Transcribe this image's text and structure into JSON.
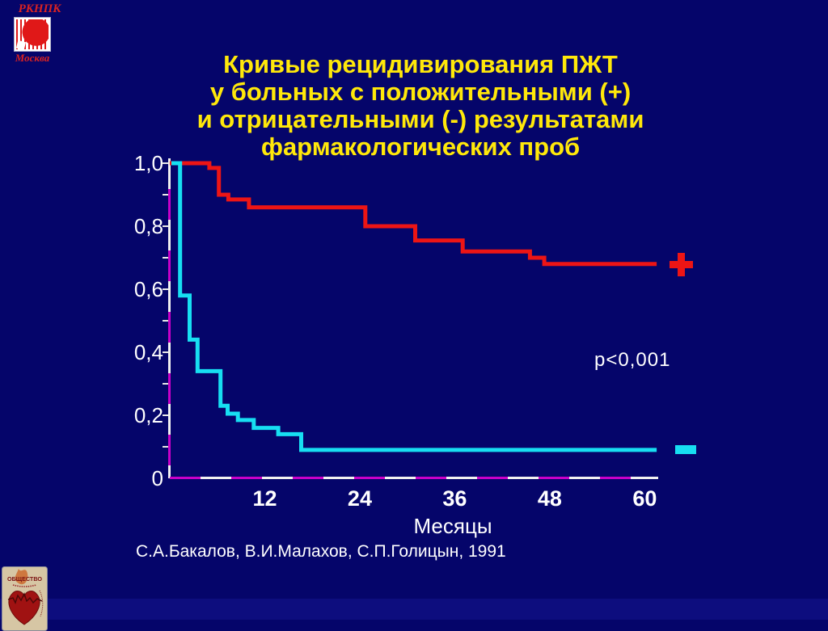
{
  "slide": {
    "title_lines": [
      "Кривые рецидивирования ПЖТ",
      "у больных с положительными (+)",
      "и отрицательными (-) результатами",
      "фармакологических проб"
    ],
    "p_value": "p<0,001",
    "citation": "С.А.Бакалов, В.И.Малахов, С.П.Голицын, 1991",
    "positive_marker_symbol": "+",
    "negative_marker_symbol": "−",
    "accent_colors": {
      "title_yellow": "#ffe80a",
      "background_navy": "#05056a",
      "axis_magenta": "#c800c8",
      "axis_white": "#f0f0f0"
    }
  },
  "logo_top": {
    "org": "РКНПК",
    "city": "Москва",
    "emblem": "red-striped-heart-icon"
  },
  "logo_bottom": {
    "text": "ОБЩЕСТВО",
    "emblem": "red-heart-ecg-icon"
  },
  "chart_data": {
    "type": "line",
    "subtype": "kaplan-meier-step",
    "title": "Кривые рецидивирования ПЖТ у больных с положительными (+) и отрицательными (-) результатами фармакологических проб",
    "xlabel": "Месяцы",
    "ylabel": "",
    "xlim": [
      0,
      62
    ],
    "ylim": [
      0,
      1.0
    ],
    "grid": false,
    "annotation": "p<0,001",
    "x_ticks": [
      12,
      24,
      36,
      48,
      60
    ],
    "x_tick_labels": [
      "12",
      "24",
      "36",
      "48",
      "60"
    ],
    "y_tick_values": [
      1.0,
      0.8,
      0.6,
      0.4,
      0.2,
      0
    ],
    "y_tick_labels": [
      "1,0",
      "0,8",
      "0,6",
      "0,4",
      "0,2",
      "0"
    ],
    "y_minor_ticks": [
      0.1,
      0.2,
      0.3,
      0.4,
      0.5,
      0.6,
      0.7,
      0.8,
      0.9,
      1.0
    ],
    "series": [
      {
        "id": "positive",
        "name": "положительные (+) результаты",
        "color": "#ed1515",
        "marker": "+",
        "points": [
          [
            0,
            1.0
          ],
          [
            5,
            1.0
          ],
          [
            5,
            0.985
          ],
          [
            6.2,
            0.985
          ],
          [
            6.2,
            0.9
          ],
          [
            7.4,
            0.9
          ],
          [
            7.4,
            0.885
          ],
          [
            10,
            0.885
          ],
          [
            10,
            0.86
          ],
          [
            24.7,
            0.86
          ],
          [
            24.7,
            0.8
          ],
          [
            31,
            0.8
          ],
          [
            31,
            0.755
          ],
          [
            37,
            0.755
          ],
          [
            37,
            0.72
          ],
          [
            45.5,
            0.72
          ],
          [
            45.5,
            0.7
          ],
          [
            47.3,
            0.7
          ],
          [
            47.3,
            0.68
          ],
          [
            61.5,
            0.68
          ]
        ]
      },
      {
        "id": "negative",
        "name": "отрицательные (-) результаты",
        "color": "#17dff2",
        "marker": "−",
        "points": [
          [
            0.2,
            1.0
          ],
          [
            1.3,
            1.0
          ],
          [
            1.3,
            0.58
          ],
          [
            2.5,
            0.58
          ],
          [
            2.5,
            0.44
          ],
          [
            3.5,
            0.44
          ],
          [
            3.5,
            0.34
          ],
          [
            6.4,
            0.34
          ],
          [
            6.4,
            0.23
          ],
          [
            7.3,
            0.23
          ],
          [
            7.3,
            0.205
          ],
          [
            8.6,
            0.205
          ],
          [
            8.6,
            0.185
          ],
          [
            10.6,
            0.185
          ],
          [
            10.6,
            0.16
          ],
          [
            13.7,
            0.16
          ],
          [
            13.7,
            0.14
          ],
          [
            16.6,
            0.14
          ],
          [
            16.6,
            0.09
          ],
          [
            61.5,
            0.09
          ]
        ]
      }
    ]
  }
}
